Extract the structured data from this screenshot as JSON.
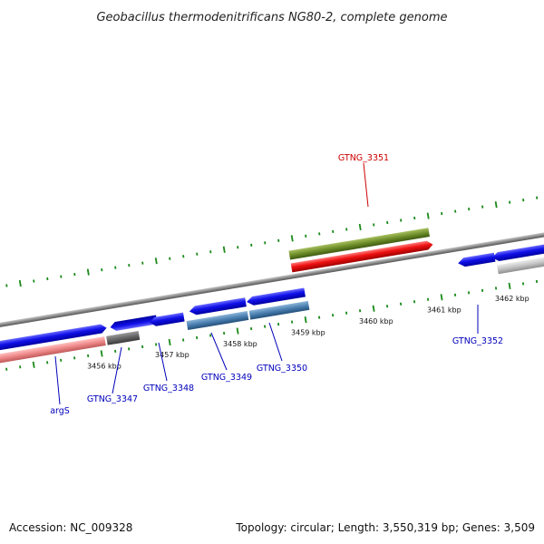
{
  "title": "Geobacillus thermodenitrificans NG80-2, complete genome",
  "footer": {
    "accession": "Accession: NC_009328",
    "summary": "Topology: circular; Length: 3,550,319 bp; Genes: 3,509"
  },
  "colors": {
    "backbone": "#8c8c8c",
    "forward_gene": "#1010e8",
    "reverse_gene": "#1010e8",
    "highlight_gene": "#ee1111",
    "feature_green": "#6e8e2a",
    "feature_steelblue": "#4a7fb0",
    "feature_pink": "#ee8888",
    "feature_gray": "#666666",
    "feature_lightgray": "#c4c4c4",
    "tick": "#1a8a1a",
    "label_blue": "#0000bb",
    "label_red": "#cc0000"
  },
  "scale_labels": [
    "3456 kbp",
    "3457 kbp",
    "3458 kbp",
    "3459 kbp",
    "3460 kbp",
    "3461 kbp",
    "3462 kbp"
  ],
  "gene_labels": [
    {
      "text": "GTNG_3351",
      "color": "red"
    },
    {
      "text": "GTNG_3352",
      "color": "blue"
    },
    {
      "text": "GTNG_3350",
      "color": "blue"
    },
    {
      "text": "GTNG_3349",
      "color": "blue"
    },
    {
      "text": "GTNG_3348",
      "color": "blue"
    },
    {
      "text": "GTNG_3347",
      "color": "blue"
    },
    {
      "text": "argS",
      "color": "blue"
    }
  ]
}
